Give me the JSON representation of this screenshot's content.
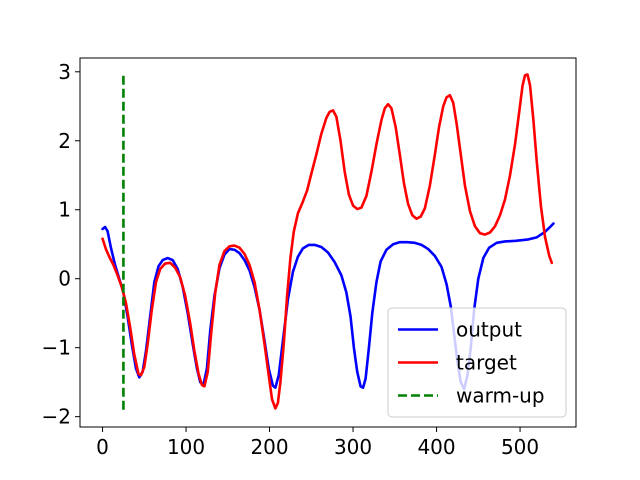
{
  "chart_data": {
    "type": "line",
    "xlim": [
      -27,
      567
    ],
    "ylim": [
      -2.15,
      3.2
    ],
    "xticks": [
      0,
      100,
      200,
      300,
      400,
      500
    ],
    "yticks": [
      -2,
      -1,
      0,
      1,
      2,
      3
    ],
    "grid": false,
    "legend_position": "lower-right",
    "series": [
      {
        "name": "output",
        "color": "#0000ff",
        "style": "solid",
        "points": [
          [
            0,
            0.72
          ],
          [
            3,
            0.75
          ],
          [
            6,
            0.69
          ],
          [
            10,
            0.45
          ],
          [
            15,
            0.2
          ],
          [
            20,
            0.0
          ],
          [
            25,
            -0.2
          ],
          [
            30,
            -0.55
          ],
          [
            35,
            -0.95
          ],
          [
            40,
            -1.3
          ],
          [
            44,
            -1.43
          ],
          [
            48,
            -1.35
          ],
          [
            52,
            -1.05
          ],
          [
            57,
            -0.55
          ],
          [
            62,
            -0.05
          ],
          [
            67,
            0.18
          ],
          [
            72,
            0.27
          ],
          [
            78,
            0.3
          ],
          [
            84,
            0.27
          ],
          [
            90,
            0.14
          ],
          [
            96,
            -0.12
          ],
          [
            102,
            -0.5
          ],
          [
            108,
            -0.95
          ],
          [
            113,
            -1.3
          ],
          [
            117,
            -1.5
          ],
          [
            121,
            -1.53
          ],
          [
            125,
            -1.3
          ],
          [
            129,
            -0.75
          ],
          [
            134,
            -0.25
          ],
          [
            140,
            0.15
          ],
          [
            146,
            0.35
          ],
          [
            152,
            0.43
          ],
          [
            158,
            0.42
          ],
          [
            164,
            0.37
          ],
          [
            170,
            0.27
          ],
          [
            176,
            0.12
          ],
          [
            182,
            -0.12
          ],
          [
            188,
            -0.45
          ],
          [
            194,
            -0.9
          ],
          [
            199,
            -1.3
          ],
          [
            204,
            -1.55
          ],
          [
            207,
            -1.58
          ],
          [
            211,
            -1.4
          ],
          [
            216,
            -0.9
          ],
          [
            222,
            -0.3
          ],
          [
            228,
            0.1
          ],
          [
            234,
            0.32
          ],
          [
            240,
            0.44
          ],
          [
            247,
            0.49
          ],
          [
            254,
            0.49
          ],
          [
            262,
            0.46
          ],
          [
            270,
            0.38
          ],
          [
            278,
            0.24
          ],
          [
            286,
            0.05
          ],
          [
            292,
            -0.2
          ],
          [
            297,
            -0.55
          ],
          [
            301,
            -1.0
          ],
          [
            305,
            -1.35
          ],
          [
            309,
            -1.56
          ],
          [
            312,
            -1.58
          ],
          [
            315,
            -1.45
          ],
          [
            319,
            -1.0
          ],
          [
            323,
            -0.5
          ],
          [
            328,
            -0.05
          ],
          [
            333,
            0.25
          ],
          [
            340,
            0.42
          ],
          [
            348,
            0.5
          ],
          [
            356,
            0.53
          ],
          [
            365,
            0.53
          ],
          [
            374,
            0.52
          ],
          [
            382,
            0.49
          ],
          [
            390,
            0.43
          ],
          [
            398,
            0.33
          ],
          [
            406,
            0.17
          ],
          [
            412,
            -0.08
          ],
          [
            417,
            -0.4
          ],
          [
            421,
            -0.8
          ],
          [
            425,
            -1.2
          ],
          [
            429,
            -1.5
          ],
          [
            433,
            -1.6
          ],
          [
            437,
            -1.4
          ],
          [
            441,
            -1.0
          ],
          [
            445,
            -0.45
          ],
          [
            450,
            0.0
          ],
          [
            456,
            0.3
          ],
          [
            463,
            0.45
          ],
          [
            472,
            0.52
          ],
          [
            482,
            0.54
          ],
          [
            495,
            0.55
          ],
          [
            510,
            0.57
          ],
          [
            520,
            0.6
          ],
          [
            530,
            0.68
          ],
          [
            536,
            0.75
          ],
          [
            540,
            0.8
          ]
        ]
      },
      {
        "name": "target",
        "color": "#ff0000",
        "style": "solid",
        "points": [
          [
            0,
            0.58
          ],
          [
            4,
            0.43
          ],
          [
            8,
            0.32
          ],
          [
            13,
            0.2
          ],
          [
            18,
            0.05
          ],
          [
            23,
            -0.12
          ],
          [
            28,
            -0.35
          ],
          [
            33,
            -0.7
          ],
          [
            38,
            -1.1
          ],
          [
            43,
            -1.38
          ],
          [
            46,
            -1.4
          ],
          [
            50,
            -1.28
          ],
          [
            54,
            -0.95
          ],
          [
            59,
            -0.45
          ],
          [
            64,
            -0.05
          ],
          [
            69,
            0.14
          ],
          [
            75,
            0.22
          ],
          [
            81,
            0.23
          ],
          [
            87,
            0.16
          ],
          [
            93,
            0.02
          ],
          [
            99,
            -0.25
          ],
          [
            105,
            -0.65
          ],
          [
            110,
            -1.05
          ],
          [
            115,
            -1.38
          ],
          [
            119,
            -1.54
          ],
          [
            122,
            -1.56
          ],
          [
            126,
            -1.35
          ],
          [
            130,
            -0.8
          ],
          [
            135,
            -0.2
          ],
          [
            140,
            0.2
          ],
          [
            146,
            0.4
          ],
          [
            152,
            0.47
          ],
          [
            158,
            0.48
          ],
          [
            164,
            0.45
          ],
          [
            170,
            0.36
          ],
          [
            176,
            0.2
          ],
          [
            182,
            -0.05
          ],
          [
            188,
            -0.45
          ],
          [
            194,
            -0.95
          ],
          [
            199,
            -1.4
          ],
          [
            203,
            -1.75
          ],
          [
            207,
            -1.88
          ],
          [
            210,
            -1.8
          ],
          [
            213,
            -1.5
          ],
          [
            217,
            -0.95
          ],
          [
            221,
            -0.25
          ],
          [
            225,
            0.3
          ],
          [
            229,
            0.68
          ],
          [
            234,
            0.95
          ],
          [
            240,
            1.12
          ],
          [
            245,
            1.28
          ],
          [
            250,
            1.52
          ],
          [
            256,
            1.8
          ],
          [
            262,
            2.1
          ],
          [
            268,
            2.33
          ],
          [
            272,
            2.42
          ],
          [
            276,
            2.44
          ],
          [
            280,
            2.35
          ],
          [
            285,
            2.0
          ],
          [
            290,
            1.55
          ],
          [
            295,
            1.22
          ],
          [
            300,
            1.06
          ],
          [
            305,
            1.01
          ],
          [
            310,
            1.03
          ],
          [
            316,
            1.2
          ],
          [
            322,
            1.55
          ],
          [
            328,
            1.95
          ],
          [
            334,
            2.3
          ],
          [
            338,
            2.47
          ],
          [
            342,
            2.53
          ],
          [
            346,
            2.47
          ],
          [
            351,
            2.2
          ],
          [
            356,
            1.8
          ],
          [
            361,
            1.38
          ],
          [
            366,
            1.08
          ],
          [
            371,
            0.92
          ],
          [
            376,
            0.87
          ],
          [
            381,
            0.9
          ],
          [
            386,
            1.02
          ],
          [
            392,
            1.35
          ],
          [
            398,
            1.8
          ],
          [
            403,
            2.2
          ],
          [
            408,
            2.5
          ],
          [
            412,
            2.63
          ],
          [
            416,
            2.66
          ],
          [
            420,
            2.55
          ],
          [
            424,
            2.25
          ],
          [
            429,
            1.8
          ],
          [
            434,
            1.35
          ],
          [
            440,
            0.98
          ],
          [
            446,
            0.76
          ],
          [
            452,
            0.66
          ],
          [
            458,
            0.64
          ],
          [
            464,
            0.67
          ],
          [
            470,
            0.76
          ],
          [
            476,
            0.92
          ],
          [
            482,
            1.15
          ],
          [
            488,
            1.5
          ],
          [
            494,
            1.95
          ],
          [
            499,
            2.42
          ],
          [
            503,
            2.8
          ],
          [
            506,
            2.95
          ],
          [
            509,
            2.96
          ],
          [
            512,
            2.8
          ],
          [
            516,
            2.3
          ],
          [
            520,
            1.7
          ],
          [
            525,
            1.05
          ],
          [
            530,
            0.6
          ],
          [
            535,
            0.33
          ],
          [
            538,
            0.23
          ]
        ]
      },
      {
        "name": "warm-up",
        "color": "#008000",
        "style": "dashed",
        "points": [
          [
            25,
            -1.9
          ],
          [
            25,
            2.97
          ]
        ]
      }
    ]
  }
}
